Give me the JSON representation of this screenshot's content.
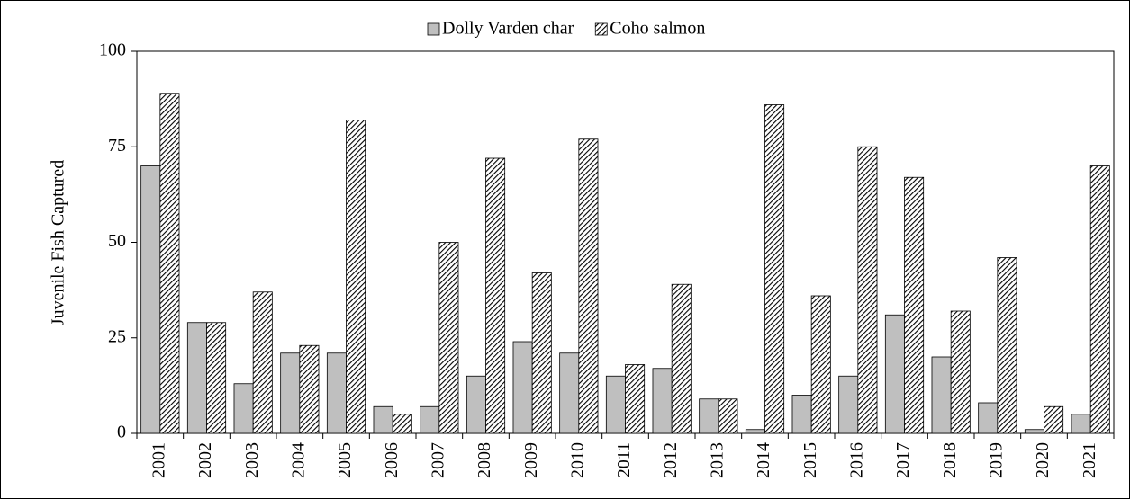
{
  "chart_data": {
    "type": "bar",
    "y_label": "Juvenile Fish Captured",
    "categories": [
      "2001",
      "2002",
      "2003",
      "2004",
      "2005",
      "2006",
      "2007",
      "2008",
      "2009",
      "2010",
      "2011",
      "2012",
      "2013",
      "2014",
      "2015",
      "2016",
      "2017",
      "2018",
      "2019",
      "2020",
      "2021"
    ],
    "series": [
      {
        "name": "Dolly Varden char",
        "color": "#bfbfbf",
        "pattern": "solid",
        "values": [
          70,
          29,
          13,
          21,
          21,
          7,
          7,
          15,
          24,
          21,
          15,
          17,
          9,
          1,
          10,
          15,
          31,
          20,
          8,
          1,
          5
        ]
      },
      {
        "name": "Coho salmon",
        "color": "#000000",
        "pattern": "diagonal",
        "values": [
          89,
          29,
          37,
          23,
          82,
          5,
          50,
          72,
          42,
          77,
          18,
          39,
          9,
          86,
          36,
          75,
          67,
          32,
          46,
          7,
          70
        ]
      }
    ],
    "ylim": [
      0,
      100
    ],
    "yticks": [
      0,
      25,
      50,
      75,
      100
    ],
    "grid": false,
    "legend": "top"
  }
}
